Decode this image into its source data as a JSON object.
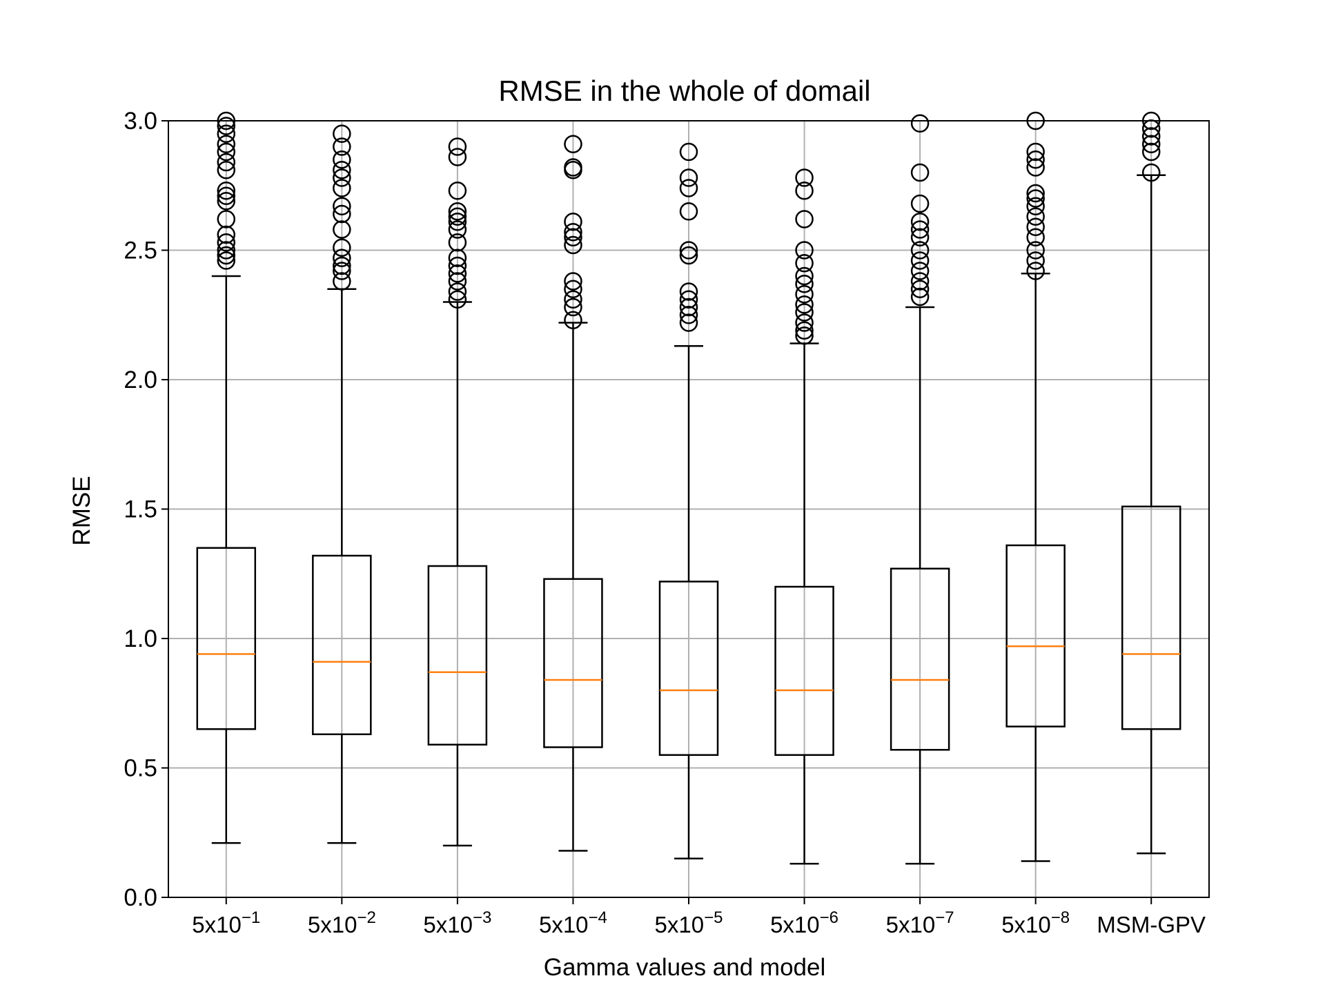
{
  "chart_data": {
    "type": "box",
    "title": "RMSE in the whole of domail",
    "xlabel": "Gamma values and model",
    "ylabel": "RMSE",
    "ylim": [
      0,
      3
    ],
    "yticks": [
      "0.0",
      "0.5",
      "1.0",
      "1.5",
      "2.0",
      "2.5",
      "3.0"
    ],
    "grid": true,
    "categories": [
      {
        "base": "5x10",
        "exp": "−1"
      },
      {
        "base": "5x10",
        "exp": "−2"
      },
      {
        "base": "5x10",
        "exp": "−3"
      },
      {
        "base": "5x10",
        "exp": "−4"
      },
      {
        "base": "5x10",
        "exp": "−5"
      },
      {
        "base": "5x10",
        "exp": "−6"
      },
      {
        "base": "5x10",
        "exp": "−7"
      },
      {
        "base": "5x10",
        "exp": "−8"
      },
      {
        "base": "MSM-GPV",
        "exp": ""
      }
    ],
    "boxes": [
      {
        "whislo": 0.21,
        "q1": 0.65,
        "med": 0.94,
        "q3": 1.35,
        "whishi": 2.4,
        "fliers": [
          2.46,
          2.48,
          2.5,
          2.53,
          2.56,
          2.62,
          2.69,
          2.71,
          2.73,
          2.81,
          2.84,
          2.88,
          2.91,
          2.95,
          2.98,
          3.0
        ]
      },
      {
        "whislo": 0.21,
        "q1": 0.63,
        "med": 0.91,
        "q3": 1.32,
        "whishi": 2.35,
        "fliers": [
          2.38,
          2.42,
          2.44,
          2.47,
          2.51,
          2.58,
          2.64,
          2.67,
          2.74,
          2.78,
          2.81,
          2.85,
          2.9,
          2.95
        ]
      },
      {
        "whislo": 0.2,
        "q1": 0.59,
        "med": 0.87,
        "q3": 1.28,
        "whishi": 2.3,
        "fliers": [
          2.31,
          2.34,
          2.38,
          2.41,
          2.44,
          2.47,
          2.53,
          2.58,
          2.61,
          2.63,
          2.65,
          2.73,
          2.86,
          2.9
        ]
      },
      {
        "whislo": 0.18,
        "q1": 0.58,
        "med": 0.84,
        "q3": 1.23,
        "whishi": 2.22,
        "fliers": [
          2.23,
          2.28,
          2.31,
          2.35,
          2.38,
          2.52,
          2.55,
          2.57,
          2.61,
          2.81,
          2.82,
          2.91
        ]
      },
      {
        "whislo": 0.15,
        "q1": 0.55,
        "med": 0.8,
        "q3": 1.22,
        "whishi": 2.13,
        "fliers": [
          2.22,
          2.25,
          2.28,
          2.31,
          2.34,
          2.48,
          2.5,
          2.65,
          2.74,
          2.78,
          2.88
        ]
      },
      {
        "whislo": 0.13,
        "q1": 0.55,
        "med": 0.8,
        "q3": 1.2,
        "whishi": 2.14,
        "fliers": [
          2.17,
          2.19,
          2.22,
          2.26,
          2.29,
          2.33,
          2.37,
          2.4,
          2.45,
          2.5,
          2.62,
          2.73,
          2.78
        ]
      },
      {
        "whislo": 0.13,
        "q1": 0.57,
        "med": 0.84,
        "q3": 1.27,
        "whishi": 2.28,
        "fliers": [
          2.32,
          2.35,
          2.38,
          2.42,
          2.46,
          2.5,
          2.55,
          2.58,
          2.61,
          2.68,
          2.8,
          2.99
        ]
      },
      {
        "whislo": 0.14,
        "q1": 0.66,
        "med": 0.97,
        "q3": 1.36,
        "whishi": 2.41,
        "fliers": [
          2.42,
          2.46,
          2.5,
          2.55,
          2.59,
          2.63,
          2.67,
          2.7,
          2.72,
          2.82,
          2.85,
          2.88,
          3.0
        ]
      },
      {
        "whislo": 0.17,
        "q1": 0.65,
        "med": 0.94,
        "q3": 1.51,
        "whishi": 2.79,
        "fliers": [
          2.8,
          2.88,
          2.91,
          2.94,
          2.97,
          3.0
        ]
      }
    ]
  }
}
